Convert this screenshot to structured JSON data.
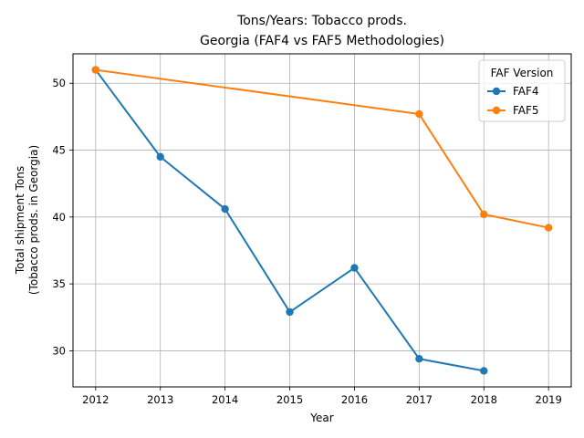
{
  "chart_data": {
    "type": "line",
    "title_line1": "Tons/Years: Tobacco prods.",
    "title_line2": "Georgia (FAF4 vs FAF5 Methodologies)",
    "xlabel": "Year",
    "ylabel_line1": "Total shipment Tons",
    "ylabel_line2": "(Tobacco prods. in Georgia)",
    "x_ticks": [
      2012,
      2013,
      2014,
      2015,
      2016,
      2017,
      2018,
      2019
    ],
    "y_ticks": [
      30,
      35,
      40,
      45,
      50
    ],
    "xlim": [
      2011.65,
      2019.35
    ],
    "ylim": [
      27.3,
      52.2
    ],
    "grid": true,
    "legend": {
      "title": "FAF Version",
      "placement": "top-right"
    },
    "series": [
      {
        "name": "FAF4",
        "color": "#1f77b4",
        "x": [
          2012,
          2013,
          2014,
          2015,
          2016,
          2017,
          2018
        ],
        "y": [
          51.0,
          44.5,
          40.6,
          32.9,
          36.2,
          29.4,
          28.5
        ]
      },
      {
        "name": "FAF5",
        "color": "#ff7f0e",
        "x": [
          2012,
          2017,
          2018,
          2019
        ],
        "y": [
          51.0,
          47.7,
          40.2,
          39.2
        ]
      }
    ]
  }
}
